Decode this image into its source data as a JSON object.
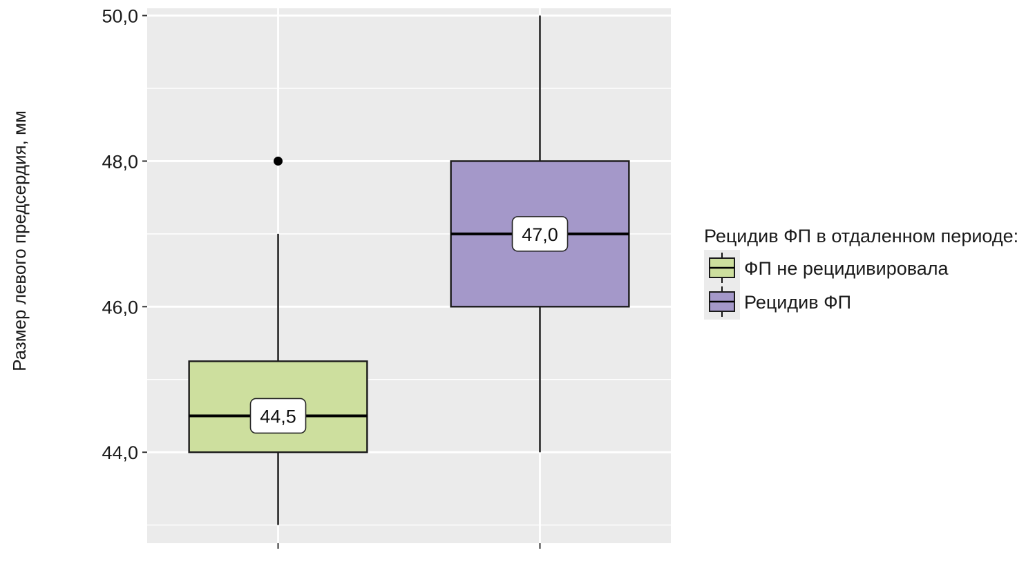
{
  "chart_data": {
    "type": "boxplot",
    "ylabel": "Размер левого предсердия, мм",
    "ylim": [
      42.75,
      50.1
    ],
    "yticks": [
      {
        "value": 44,
        "label": "44,0"
      },
      {
        "value": 46,
        "label": "46,0"
      },
      {
        "value": 48,
        "label": "48,0"
      },
      {
        "value": 50,
        "label": "50,0"
      }
    ],
    "y_minor_gridlines": [
      43,
      45,
      47,
      49
    ],
    "grid": true,
    "legend": {
      "title": "Рецидив ФП в отдаленном периоде:",
      "placement": "right"
    },
    "series": [
      {
        "name": "ФП не рецидивировала",
        "color": "#cddf9e",
        "whisker_low": 43.0,
        "q1": 44.0,
        "median": 44.5,
        "q3": 45.25,
        "whisker_high": 47.0,
        "outliers": [
          48.0
        ],
        "median_label": "44,5"
      },
      {
        "name": "Рецидив ФП",
        "color": "#a498c9",
        "whisker_low": 44.0,
        "q1": 46.0,
        "median": 47.0,
        "q3": 48.0,
        "whisker_high": 50.0,
        "outliers": [],
        "median_label": "47,0"
      }
    ]
  }
}
